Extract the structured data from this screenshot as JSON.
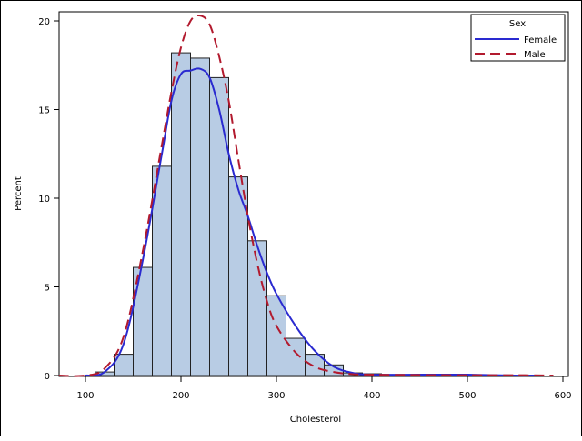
{
  "chart_data": {
    "type": "bar",
    "subtype": "histogram-with-density-curves",
    "title": "",
    "xlabel": "Cholesterol",
    "ylabel": "Percent",
    "xlim": [
      72,
      607
    ],
    "ylim": [
      0,
      20.5
    ],
    "xticks": [
      100,
      200,
      300,
      400,
      500,
      600
    ],
    "xtick_labels": [
      "100",
      "200",
      "300",
      "400",
      "500",
      "600"
    ],
    "yticks": [
      0,
      5,
      10,
      15,
      20
    ],
    "ytick_labels": [
      "0",
      "5",
      "10",
      "15",
      "20"
    ],
    "grid": false,
    "bin_width": 20,
    "bins": [
      {
        "start": 110,
        "end": 130,
        "percent": 0.2
      },
      {
        "start": 130,
        "end": 150,
        "percent": 1.2
      },
      {
        "start": 150,
        "end": 170,
        "percent": 6.1
      },
      {
        "start": 170,
        "end": 190,
        "percent": 11.8
      },
      {
        "start": 190,
        "end": 210,
        "percent": 18.2
      },
      {
        "start": 210,
        "end": 230,
        "percent": 17.9
      },
      {
        "start": 230,
        "end": 250,
        "percent": 16.8
      },
      {
        "start": 250,
        "end": 270,
        "percent": 11.2
      },
      {
        "start": 270,
        "end": 290,
        "percent": 7.6
      },
      {
        "start": 290,
        "end": 310,
        "percent": 4.5
      },
      {
        "start": 310,
        "end": 330,
        "percent": 2.1
      },
      {
        "start": 330,
        "end": 350,
        "percent": 1.2
      },
      {
        "start": 350,
        "end": 370,
        "percent": 0.6
      },
      {
        "start": 370,
        "end": 390,
        "percent": 0.15
      },
      {
        "start": 390,
        "end": 410,
        "percent": 0.1
      }
    ],
    "bar_color": "#b8cce4",
    "bar_edge": "#000000",
    "series": [
      {
        "name": "Female",
        "style": "solid",
        "color": "#2a2ad0",
        "x": [
          100,
          120,
          140,
          160,
          180,
          190,
          200,
          210,
          220,
          230,
          240,
          250,
          260,
          270,
          280,
          290,
          300,
          320,
          340,
          360,
          380,
          400,
          450,
          500,
          550,
          570
        ],
        "y": [
          0.0,
          0.2,
          1.8,
          6.5,
          12.5,
          15.5,
          17.0,
          17.2,
          17.3,
          16.8,
          15.0,
          12.5,
          10.5,
          9.0,
          7.3,
          5.8,
          4.6,
          2.8,
          1.4,
          0.5,
          0.15,
          0.05,
          0.05,
          0.05,
          0.0,
          0.0
        ]
      },
      {
        "name": "Male",
        "style": "dashed",
        "color": "#b21a2e",
        "x": [
          72,
          100,
          120,
          140,
          160,
          180,
          190,
          200,
          210,
          220,
          230,
          240,
          250,
          260,
          270,
          280,
          290,
          300,
          320,
          340,
          360,
          380,
          400,
          450,
          500,
          550,
          590
        ],
        "y": [
          0.0,
          0.0,
          0.4,
          2.2,
          7.0,
          13.0,
          16.0,
          18.5,
          20.0,
          20.3,
          19.8,
          18.0,
          15.5,
          12.2,
          9.0,
          6.3,
          4.2,
          2.8,
          1.3,
          0.5,
          0.2,
          0.08,
          0.05,
          0.03,
          0.02,
          0.02,
          0.0
        ]
      }
    ],
    "legend": {
      "title": "Sex",
      "position": "top-right-inside",
      "entries": [
        {
          "label": "Female",
          "style": "solid",
          "color": "#2a2ad0"
        },
        {
          "label": "Male",
          "style": "dashed",
          "color": "#b21a2e"
        }
      ]
    }
  },
  "ui": {
    "legend_title": "Sex",
    "legend_female": "Female",
    "legend_male": "Male",
    "xlabel": "Cholesterol",
    "ylabel": "Percent"
  }
}
